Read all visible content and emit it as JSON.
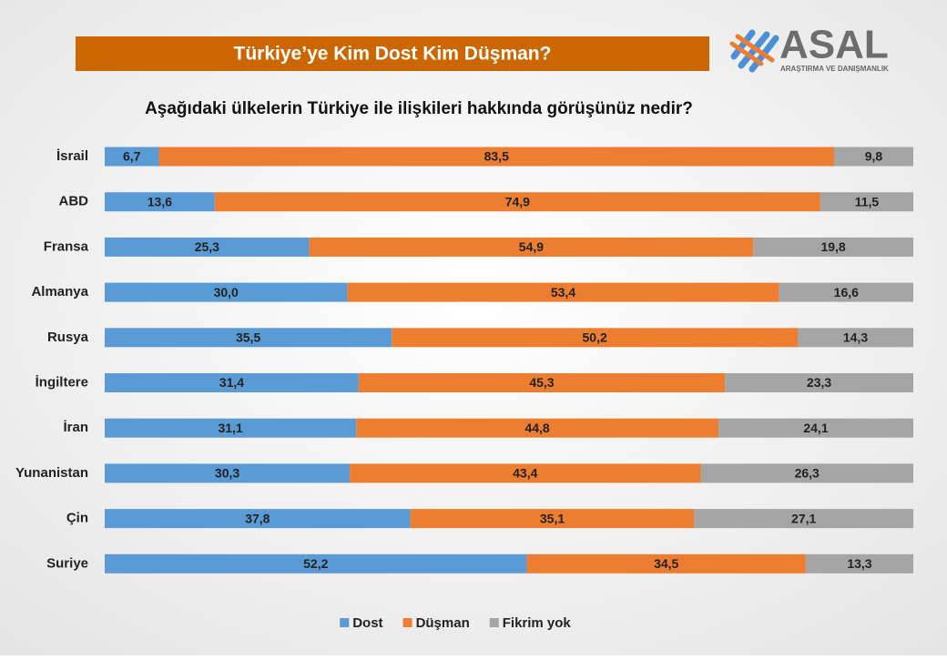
{
  "logo": {
    "name": "ASAL",
    "tagline": "ARAŞTIRMA VE DANIŞMANLIK"
  },
  "chart_data": {
    "type": "stacked-bar-horizontal",
    "title": "Türkiye’ye Kim Dost Kim Düşman?",
    "subtitle": "Aşağıdaki ülkelerin Türkiye ile ilişkileri hakkında görüşünüz nedir?",
    "categories": [
      "İsrail",
      "ABD",
      "Fransa",
      "Almanya",
      "Rusya",
      "İngiltere",
      "İran",
      "Yunanistan",
      "Çin",
      "Suriye"
    ],
    "xlim": [
      0,
      100
    ],
    "series": [
      {
        "name": "Dost",
        "color": "#5b9bd5",
        "values": [
          6.7,
          13.6,
          25.3,
          30.0,
          35.5,
          31.4,
          31.1,
          30.3,
          37.8,
          52.2
        ],
        "value_labels": [
          "6,7",
          "13,6",
          "25,3",
          "30,0",
          "35,5",
          "31,4",
          "31,1",
          "30,3",
          "37,8",
          "52,2"
        ]
      },
      {
        "name": "Düşman",
        "color": "#ed7d31",
        "values": [
          83.5,
          74.9,
          54.9,
          53.4,
          50.2,
          45.3,
          44.8,
          43.4,
          35.1,
          34.5
        ],
        "value_labels": [
          "83,5",
          "74,9",
          "54,9",
          "53,4",
          "50,2",
          "45,3",
          "44,8",
          "43,4",
          "35,1",
          "34,5"
        ]
      },
      {
        "name": "Fikrim yok",
        "color": "#a5a5a5",
        "values": [
          9.8,
          11.5,
          19.8,
          16.6,
          14.3,
          23.3,
          24.1,
          26.3,
          27.1,
          13.3
        ],
        "value_labels": [
          "9,8",
          "11,5",
          "19,8",
          "16,6",
          "14,3",
          "23,3",
          "24,1",
          "26,3",
          "27,1",
          "13,3"
        ]
      }
    ],
    "legend": "bottom"
  }
}
